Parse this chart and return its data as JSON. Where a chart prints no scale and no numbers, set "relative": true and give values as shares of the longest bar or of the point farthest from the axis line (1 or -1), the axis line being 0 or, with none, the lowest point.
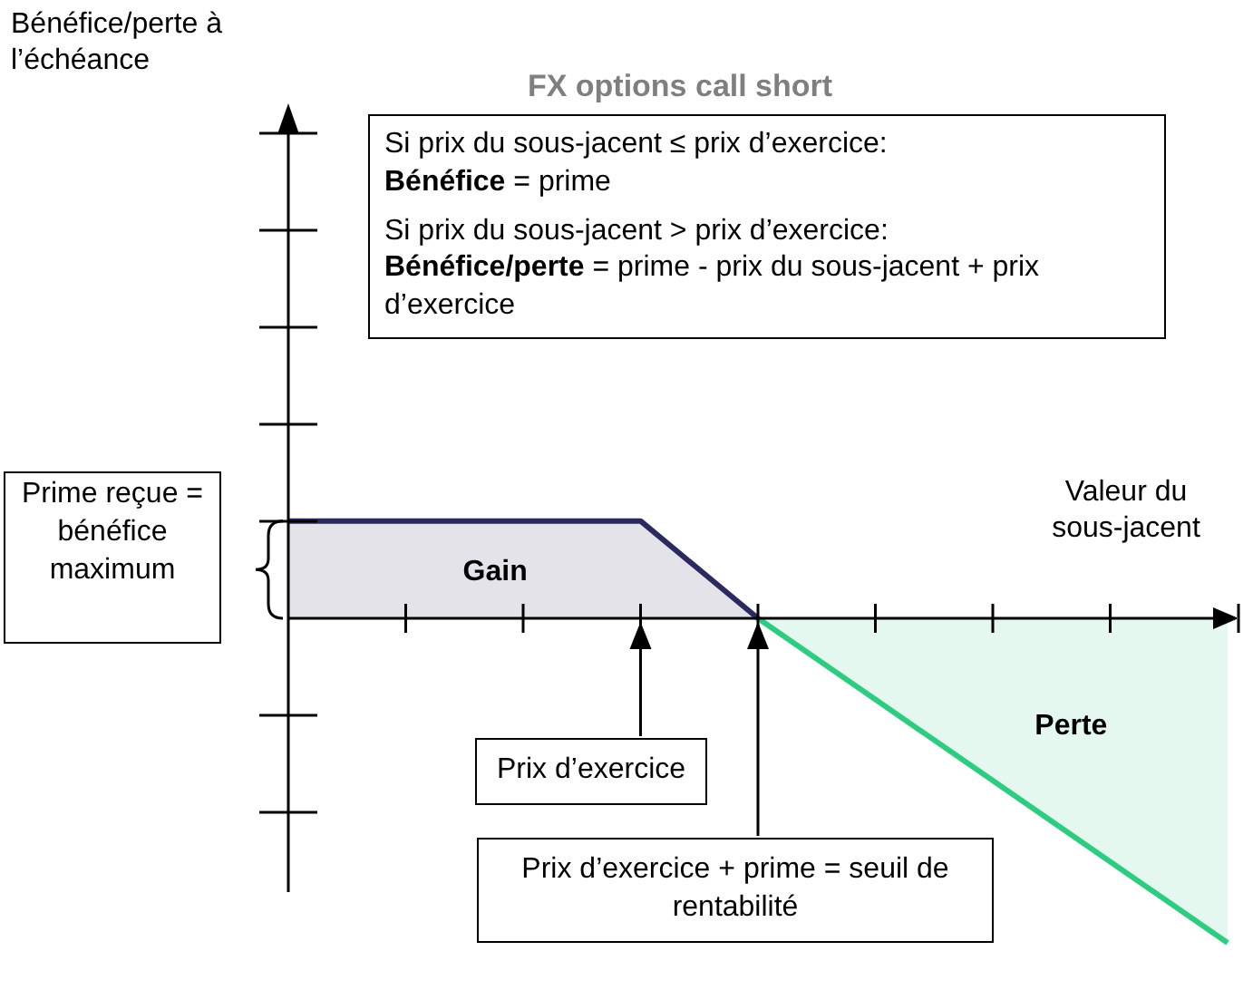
{
  "chart_data": {
    "type": "area",
    "title": "FX options call short",
    "xlabel": "Valeur du sous-jacent",
    "relative": true,
    "categories": [
      null,
      null,
      null,
      null,
      null,
      null,
      null,
      null,
      null
    ],
    "series": [
      {
        "name": "Gain",
        "color": "#2b2a5e",
        "values": [
          0.3,
          0.3,
          0.3,
          0.3,
          0,
          null,
          null,
          null,
          null
        ]
      },
      {
        "name": "Perte",
        "color": "#2ecc80",
        "values": [
          null,
          null,
          null,
          null,
          0,
          -0.25,
          -0.5,
          -0.75,
          -1
        ]
      }
    ],
    "annotations": [
      "Si prix du sous-jacent ≤ prix d’exercice:\nBénéfice = prime\nSi prix du sous-jacent > prix d’exercice:\nBénéfice/perte = prime - prix du sous-jacent + prix d’exercice",
      "Prime reçue = bénéfice maximum",
      "Prix d’exercice",
      "Prix d’exercice + prime = seuil de rentabilité",
      "Bénéfice/perte à l’échéance"
    ]
  }
}
